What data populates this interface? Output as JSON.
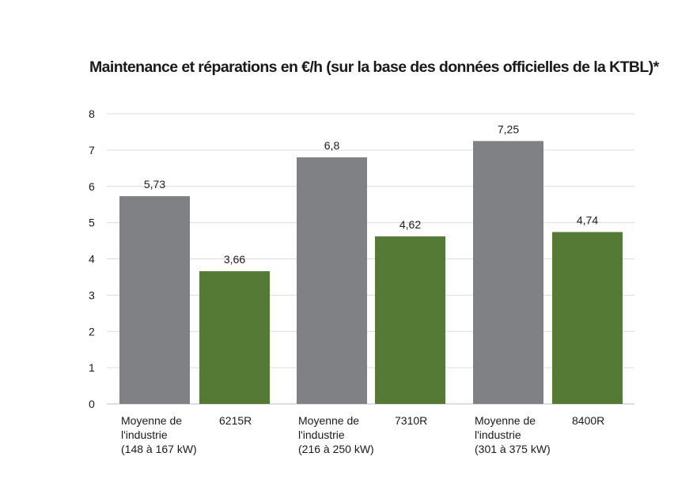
{
  "chart_data": {
    "type": "bar",
    "title": "Maintenance et réparations en €/h (sur la base des données officielles de la KTBL)*",
    "xlabel": "",
    "ylabel": "",
    "ylim": [
      0,
      8
    ],
    "yticks": [
      "0",
      "1",
      "2",
      "3",
      "4",
      "5",
      "6",
      "7",
      "8"
    ],
    "grid": true,
    "legend": "none",
    "colors": {
      "industry": "#808184",
      "model": "#547a35"
    },
    "bars": [
      {
        "category": [
          "Moyenne de",
          "l'industrie",
          "(148 à 167 kW)"
        ],
        "value": 5.73,
        "label": "5,73",
        "color": "#808184"
      },
      {
        "category": [
          "6215R"
        ],
        "value": 3.66,
        "label": "3,66",
        "color": "#547a35"
      },
      {
        "category": [
          "Moyenne de",
          "l'industrie",
          "(216 à 250 kW)"
        ],
        "value": 6.8,
        "label": "6,8",
        "color": "#808184"
      },
      {
        "category": [
          "7310R"
        ],
        "value": 4.62,
        "label": "4,62",
        "color": "#547a35"
      },
      {
        "category": [
          "Moyenne de",
          "l'industrie",
          "(301 à 375 kW)"
        ],
        "value": 7.25,
        "label": "7,25",
        "color": "#808184"
      },
      {
        "category": [
          "8400R"
        ],
        "value": 4.74,
        "label": "4,74",
        "color": "#547a35"
      }
    ]
  }
}
